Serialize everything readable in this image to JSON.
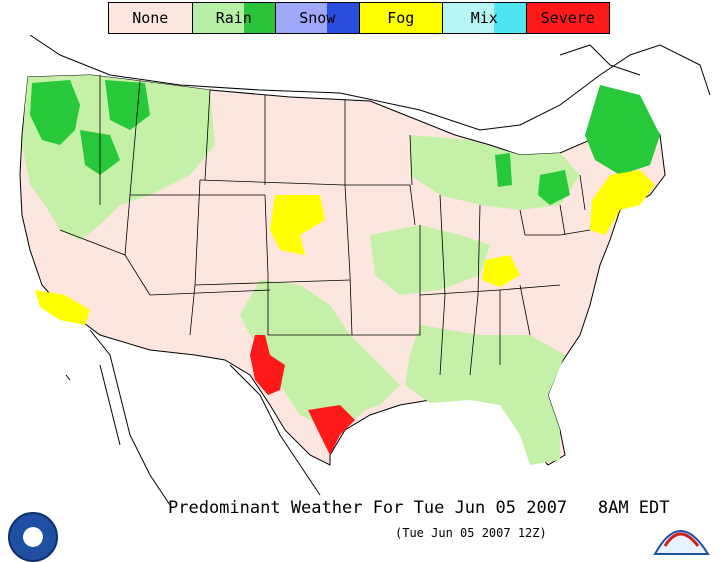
{
  "legend": [
    {
      "label": "None",
      "color": "#fde6df",
      "accent": "#fde6df"
    },
    {
      "label": "Rain",
      "color": "#b8f0a8",
      "accent": "#2cc43a"
    },
    {
      "label": "Snow",
      "color": "#9fa8f8",
      "accent": "#2a4fe0"
    },
    {
      "label": "Fog",
      "color": "#ffff00",
      "accent": "#ffff00"
    },
    {
      "label": "Mix",
      "color": "#b8f6f6",
      "accent": "#4fe6f2"
    },
    {
      "label": "Severe",
      "color": "#ff1a1a",
      "accent": "#ff1a1a"
    }
  ],
  "map": {
    "background": "#ffffff",
    "land_color": "#fde6df",
    "border_color": "#000000",
    "rain_light": "#c4f0a8",
    "rain_heavy": "#27c93a",
    "fog": "#ffff00",
    "severe": "#ff1a1a"
  },
  "caption": "Predominant Weather For Tue Jun 05 2007   8AM EDT",
  "subcaption": "(Tue Jun 05 2007 12Z)",
  "logos": {
    "left": "noaa-logo",
    "right": "weather-service-logo"
  }
}
